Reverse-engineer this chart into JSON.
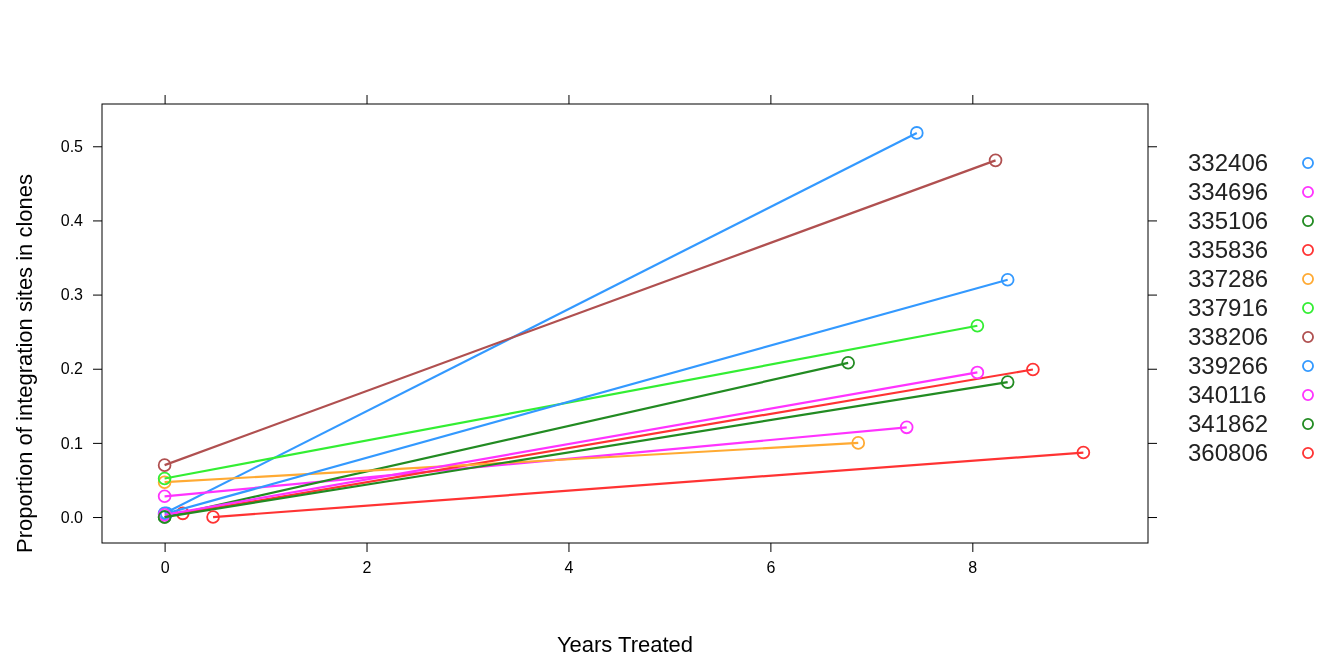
{
  "chart_data": {
    "type": "line",
    "xlabel": "Years Treated",
    "ylabel": "Proportion of integration sites in clones",
    "xlim": [
      -0.62,
      9.74
    ],
    "ylim": [
      -0.035,
      0.557
    ],
    "xticks": [
      0,
      2,
      4,
      6,
      8
    ],
    "yticks": [
      {
        "value": 0,
        "label": "0.0"
      },
      0.1,
      0.2,
      0.3,
      0.4,
      0.5
    ],
    "marker": "circle",
    "legend": "right",
    "grid": false,
    "series": [
      {
        "name": "332406",
        "color": "#3399ff",
        "x": [
          0,
          7.45
        ],
        "values": [
          0.005,
          0.518
        ]
      },
      {
        "name": "334696",
        "color": "#ff33ff",
        "x": [
          0,
          7.35
        ],
        "values": [
          0.028,
          0.121
        ]
      },
      {
        "name": "335106",
        "color": "#228b22",
        "x": [
          0,
          6.77
        ],
        "values": [
          0,
          0.208
        ]
      },
      {
        "name": "335836",
        "color": "#ff3333",
        "x": [
          0.18,
          8.6
        ],
        "values": [
          0.005,
          0.199
        ]
      },
      {
        "name": "337286",
        "color": "#ffaa33",
        "x": [
          0,
          6.87
        ],
        "values": [
          0.047,
          0.1
        ]
      },
      {
        "name": "337916",
        "color": "#33ee33",
        "x": [
          0,
          8.05
        ],
        "values": [
          0.052,
          0.258
        ]
      },
      {
        "name": "338206",
        "color": "#b05050",
        "x": [
          0,
          8.23
        ],
        "values": [
          0.07,
          0.481
        ]
      },
      {
        "name": "339266",
        "color": "#3399ff",
        "x": [
          0.02,
          8.35
        ],
        "values": [
          0.005,
          0.32
        ]
      },
      {
        "name": "340116",
        "color": "#ff33ff",
        "x": [
          0,
          8.05
        ],
        "values": [
          0.003,
          0.195
        ]
      },
      {
        "name": "341862",
        "color": "#228b22",
        "x": [
          0,
          8.35
        ],
        "values": [
          0,
          0.182
        ]
      },
      {
        "name": "360806",
        "color": "#ff3333",
        "x": [
          0.48,
          9.1
        ],
        "values": [
          0,
          0.087
        ]
      }
    ]
  }
}
